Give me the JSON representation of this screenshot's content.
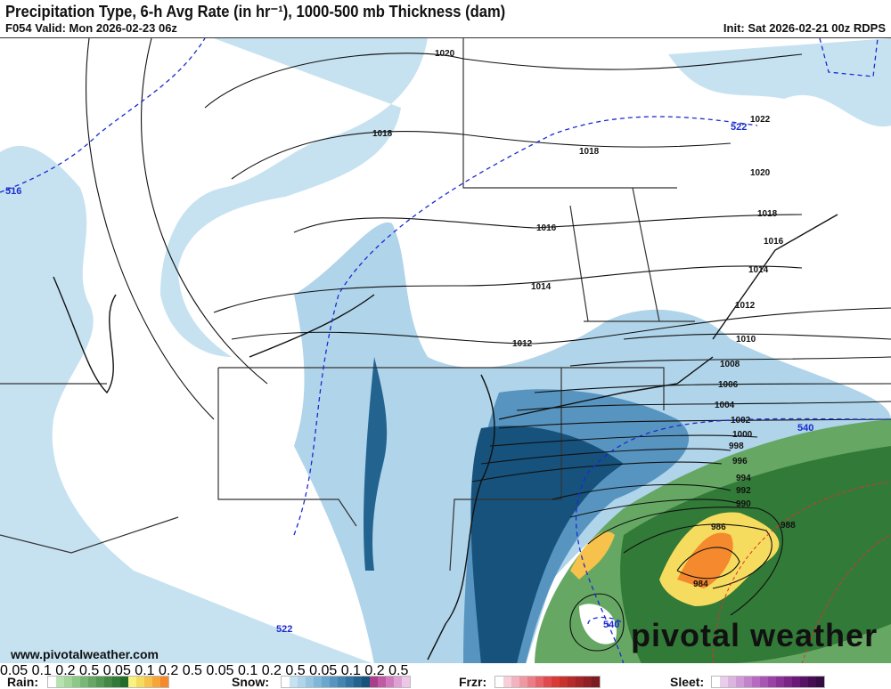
{
  "header": {
    "title": "Precipitation Type, 6-h Avg Rate (in hr⁻¹), 1000-500 mb Thickness (dam)",
    "valid": "F054 Valid: Mon 2026-02-23 06z",
    "init": "Init: Sat 2026-02-21 00z RDPS"
  },
  "map": {
    "pressure_labels": [
      "1020",
      "1018",
      "1018",
      "1016",
      "1014",
      "1012",
      "1022",
      "1020",
      "1018",
      "1016",
      "1014",
      "1012",
      "1010",
      "1008",
      "1006",
      "1004",
      "1002",
      "1000",
      "998",
      "996",
      "994",
      "992",
      "990",
      "988",
      "986",
      "984"
    ],
    "thickness_labels": [
      "516",
      "522",
      "540",
      "522",
      "540"
    ],
    "watermark_url": "www.pivotalweather.com",
    "watermark_logo": "pivotal weather"
  },
  "legend": {
    "ticks": [
      "0.05",
      "0.1",
      "0.2",
      "0.5"
    ],
    "rain": {
      "label": "Rain:",
      "colors": [
        "#ffffff",
        "#b7e3b0",
        "#a2d69a",
        "#8cc886",
        "#78b874",
        "#66a863",
        "#559854",
        "#448845",
        "#327a37",
        "#226b29",
        "#f8f283",
        "#f6dc5e",
        "#f7c24b",
        "#f6a53a",
        "#f5892d"
      ]
    },
    "snow": {
      "label": "Snow:",
      "colors": [
        "#ffffff",
        "#c6e2f1",
        "#b0d4ea",
        "#98c5e2",
        "#80b6d8",
        "#6ba6cd",
        "#5795c0",
        "#4585b2",
        "#3374a2",
        "#236390",
        "#16527c",
        "#a83f8a",
        "#bf5aa3",
        "#d07bbd",
        "#dfa1d4",
        "#ecc7e6"
      ]
    },
    "frzr": {
      "label": "Frzr:",
      "colors": [
        "#ffffff",
        "#f7cfd8",
        "#f2b3bf",
        "#ee98a2",
        "#ea7d85",
        "#e6636a",
        "#e04a4e",
        "#d93a35",
        "#c8322d",
        "#b52b2a",
        "#a22527",
        "#8f2024",
        "#7b1b22"
      ]
    },
    "sleet": {
      "label": "Sleet:",
      "colors": [
        "#ffffff",
        "#e9cdea",
        "#dcb4e0",
        "#cf9bd6",
        "#c383cc",
        "#b66bc1",
        "#a855b4",
        "#9a42a6",
        "#8b3297",
        "#7b2587",
        "#6a1a76",
        "#581365",
        "#460d53",
        "#360a43"
      ]
    }
  }
}
